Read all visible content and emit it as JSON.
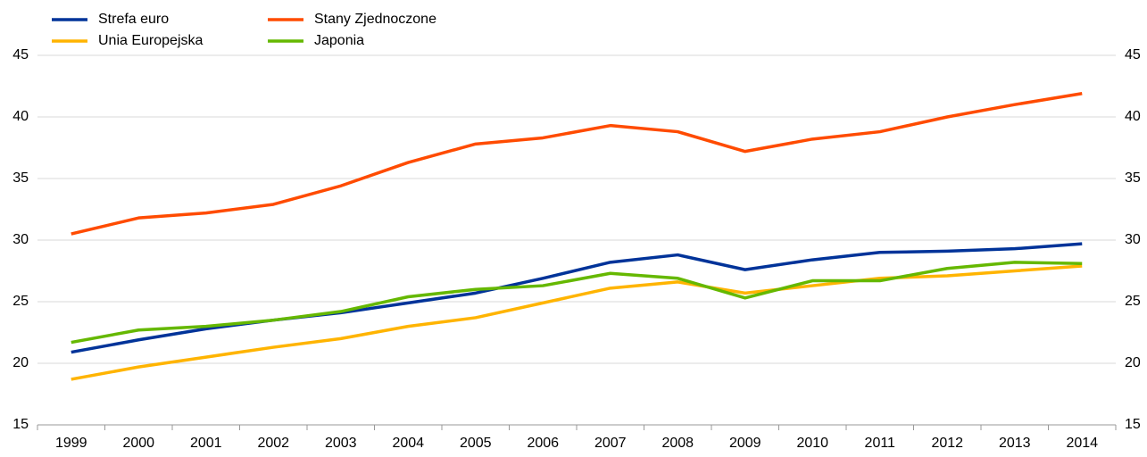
{
  "chart_data": {
    "type": "line",
    "categories": [
      "1999",
      "2000",
      "2001",
      "2002",
      "2003",
      "2004",
      "2005",
      "2006",
      "2007",
      "2008",
      "2009",
      "2010",
      "2011",
      "2012",
      "2013",
      "2014"
    ],
    "series": [
      {
        "name": "Strefa euro",
        "color": "#003399",
        "values": [
          20.9,
          21.9,
          22.8,
          23.5,
          24.1,
          24.9,
          25.7,
          26.9,
          28.2,
          28.8,
          27.6,
          28.4,
          29.0,
          29.1,
          29.3,
          29.7
        ]
      },
      {
        "name": "Unia Europejska",
        "color": "#ffb400",
        "values": [
          18.7,
          19.7,
          20.5,
          21.3,
          22.0,
          23.0,
          23.7,
          24.9,
          26.1,
          26.6,
          25.7,
          26.3,
          26.9,
          27.1,
          27.5,
          27.9
        ]
      },
      {
        "name": "Stany Zjednoczone",
        "color": "#ff4b00",
        "values": [
          30.5,
          31.8,
          32.2,
          32.9,
          34.4,
          36.3,
          37.8,
          38.3,
          39.3,
          38.8,
          37.2,
          38.2,
          38.8,
          40.0,
          41.0,
          41.9
        ]
      },
      {
        "name": "Japonia",
        "color": "#65b800",
        "values": [
          21.7,
          22.7,
          23.0,
          23.5,
          24.2,
          25.4,
          26.0,
          26.3,
          27.3,
          26.9,
          25.3,
          26.7,
          26.7,
          27.7,
          28.2,
          28.1
        ]
      }
    ],
    "ylim": [
      15,
      45
    ],
    "yticks": [
      15,
      20,
      25,
      30,
      35,
      40,
      45
    ],
    "grid": true
  }
}
